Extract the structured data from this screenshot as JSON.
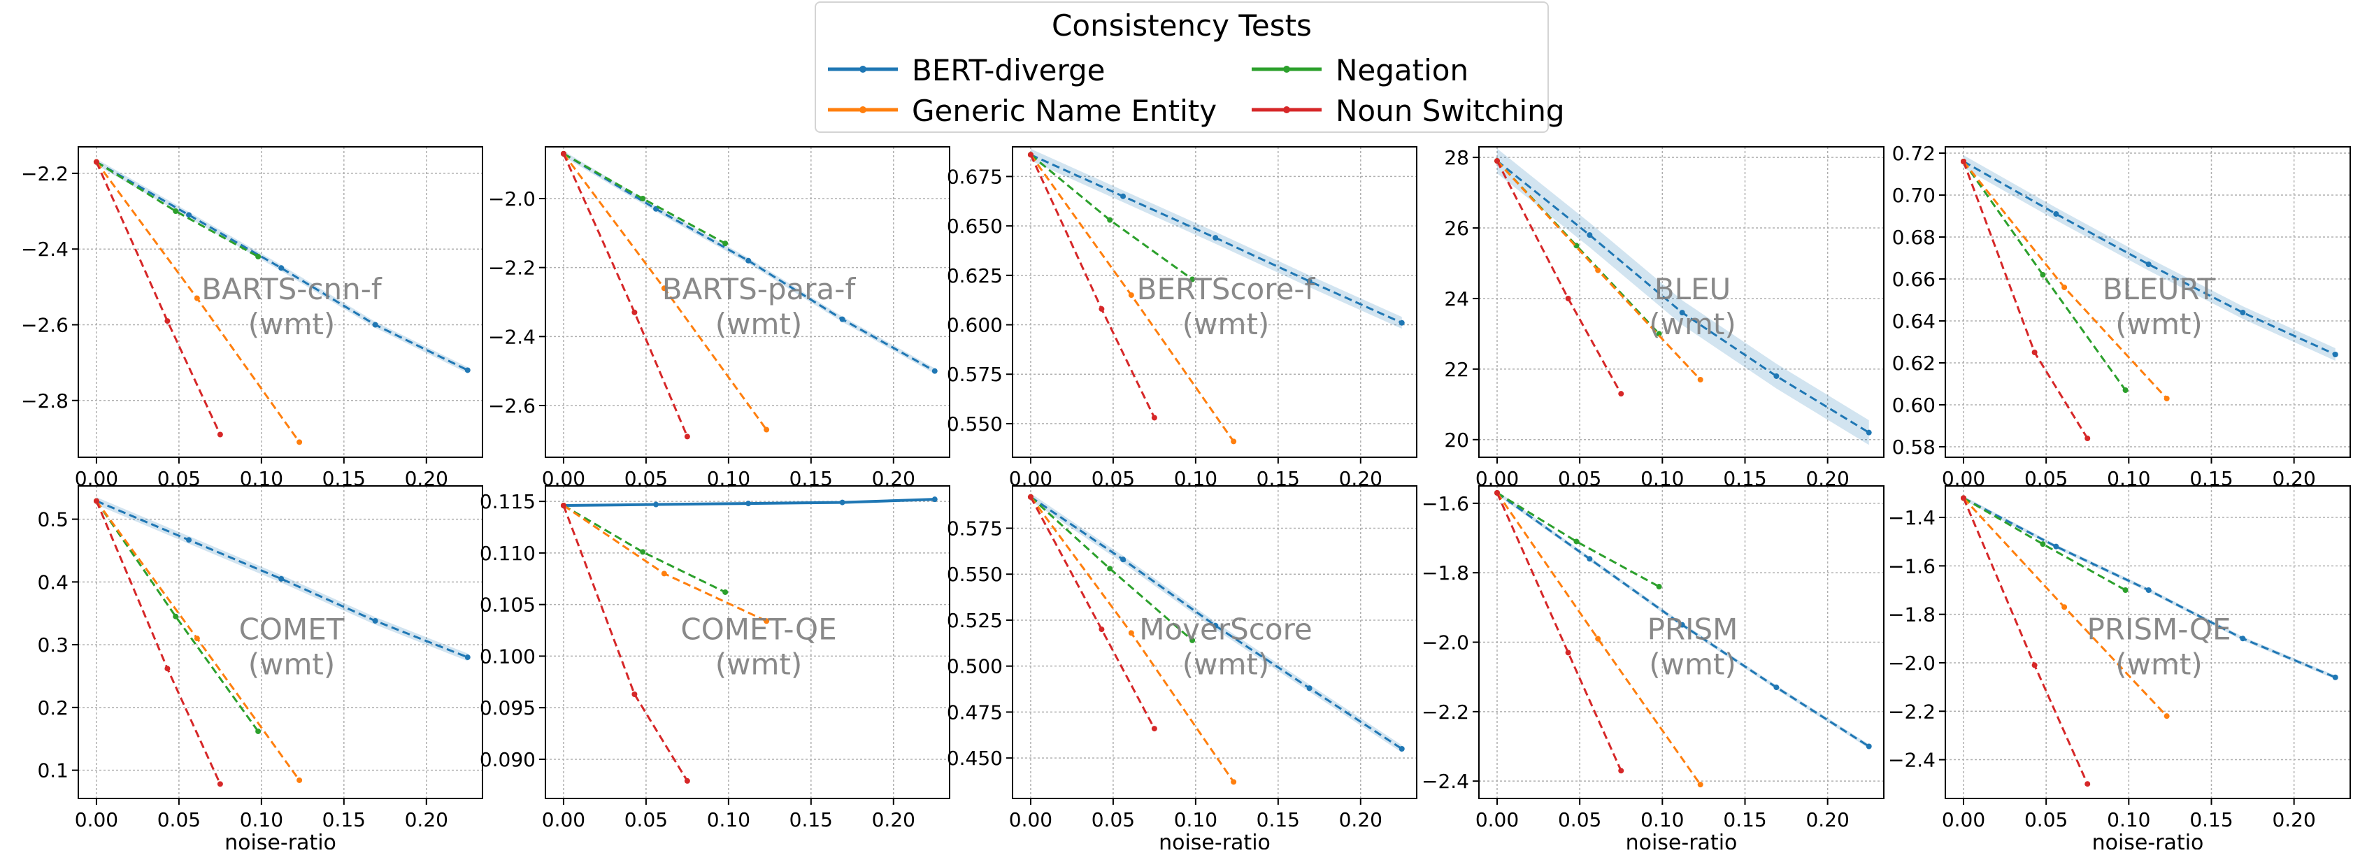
{
  "legend": {
    "title": "Consistency Tests",
    "entries": [
      {
        "name": "BERT-diverge",
        "color": "#1f77b4"
      },
      {
        "name": "Negation",
        "color": "#2ca02c"
      },
      {
        "name": "Generic Name Entity",
        "color": "#ff7f0e"
      },
      {
        "name": "Noun Switching",
        "color": "#d62728"
      }
    ]
  },
  "chart_data": [
    {
      "type": "line",
      "title": "BARTS-cnn-f",
      "subtitle": "(wmt)",
      "xlabel": "",
      "ylabel": "",
      "xlim": [
        -0.011,
        0.234
      ],
      "ylim": [
        -2.95,
        -2.13
      ],
      "xticks": [
        "0.00",
        "0.05",
        "0.10",
        "0.15",
        "0.20"
      ],
      "yticks": [
        -2.2,
        -2.4,
        -2.6,
        -2.8
      ],
      "ytick_labels": [
        "−2.2",
        "−2.4",
        "−2.6",
        "−2.8"
      ],
      "series": [
        {
          "name": "BERT-diverge",
          "x": [
            0,
            0.056,
            0.112,
            0.169,
            0.225
          ],
          "y": [
            -2.17,
            -2.31,
            -2.45,
            -2.6,
            -2.72
          ],
          "band": 0.008
        },
        {
          "name": "Negation",
          "x": [
            0,
            0.048,
            0.098
          ],
          "y": [
            -2.17,
            -2.3,
            -2.42
          ]
        },
        {
          "name": "Generic Name Entity",
          "x": [
            0,
            0.061,
            0.123
          ],
          "y": [
            -2.17,
            -2.53,
            -2.91
          ]
        },
        {
          "name": "Noun Switching",
          "x": [
            0,
            0.043,
            0.075
          ],
          "y": [
            -2.17,
            -2.59,
            -2.89
          ]
        }
      ]
    },
    {
      "type": "line",
      "title": "BARTS-para-f",
      "subtitle": "(wmt)",
      "xlabel": "",
      "ylabel": "",
      "xlim": [
        -0.011,
        0.234
      ],
      "ylim": [
        -2.75,
        -1.85
      ],
      "xticks": [
        "0.00",
        "0.05",
        "0.10",
        "0.15",
        "0.20"
      ],
      "yticks": [
        -2.0,
        -2.2,
        -2.4,
        -2.6
      ],
      "ytick_labels": [
        "−2.0",
        "−2.2",
        "−2.4",
        "−2.6"
      ],
      "series": [
        {
          "name": "BERT-diverge",
          "x": [
            0,
            0.056,
            0.112,
            0.169,
            0.225
          ],
          "y": [
            -1.87,
            -2.03,
            -2.18,
            -2.35,
            -2.5
          ],
          "band": 0.008
        },
        {
          "name": "Negation",
          "x": [
            0,
            0.048,
            0.098
          ],
          "y": [
            -1.87,
            -2.0,
            -2.13
          ]
        },
        {
          "name": "Generic Name Entity",
          "x": [
            0,
            0.061,
            0.123
          ],
          "y": [
            -1.87,
            -2.26,
            -2.67
          ]
        },
        {
          "name": "Noun Switching",
          "x": [
            0,
            0.043,
            0.075
          ],
          "y": [
            -1.87,
            -2.33,
            -2.69
          ]
        }
      ]
    },
    {
      "type": "line",
      "title": "BERTScore-f",
      "subtitle": "(wmt)",
      "xlabel": "",
      "ylabel": "",
      "xlim": [
        -0.011,
        0.234
      ],
      "ylim": [
        0.533,
        0.69
      ],
      "xticks": [
        "0.00",
        "0.05",
        "0.10",
        "0.15",
        "0.20"
      ],
      "yticks": [
        0.675,
        0.65,
        0.625,
        0.6,
        0.575,
        0.55
      ],
      "ytick_labels": [
        "0.675",
        "0.650",
        "0.625",
        "0.600",
        "0.575",
        "0.550"
      ],
      "series": [
        {
          "name": "BERT-diverge",
          "x": [
            0,
            0.056,
            0.112,
            0.169,
            0.225
          ],
          "y": [
            0.686,
            0.665,
            0.644,
            0.622,
            0.601
          ],
          "band": 0.003
        },
        {
          "name": "Negation",
          "x": [
            0,
            0.048,
            0.098
          ],
          "y": [
            0.686,
            0.653,
            0.623
          ]
        },
        {
          "name": "Generic Name Entity",
          "x": [
            0,
            0.061,
            0.123
          ],
          "y": [
            0.686,
            0.615,
            0.541
          ]
        },
        {
          "name": "Noun Switching",
          "x": [
            0,
            0.043,
            0.075
          ],
          "y": [
            0.686,
            0.608,
            0.553
          ]
        }
      ]
    },
    {
      "type": "line",
      "title": "BLEU",
      "subtitle": "(wmt)",
      "xlabel": "",
      "ylabel": "",
      "xlim": [
        -0.011,
        0.234
      ],
      "ylim": [
        19.5,
        28.3
      ],
      "xticks": [
        "0.00",
        "0.05",
        "0.10",
        "0.15",
        "0.20"
      ],
      "yticks": [
        28,
        26,
        24,
        22,
        20
      ],
      "ytick_labels": [
        "28",
        "26",
        "24",
        "22",
        "20"
      ],
      "series": [
        {
          "name": "BERT-diverge",
          "x": [
            0,
            0.056,
            0.112,
            0.169,
            0.225
          ],
          "y": [
            27.9,
            25.8,
            23.6,
            21.8,
            20.2
          ],
          "band": 0.35
        },
        {
          "name": "Negation",
          "x": [
            0,
            0.048,
            0.098
          ],
          "y": [
            27.9,
            25.5,
            23.0
          ]
        },
        {
          "name": "Generic Name Entity",
          "x": [
            0,
            0.061,
            0.123
          ],
          "y": [
            27.9,
            24.8,
            21.7
          ]
        },
        {
          "name": "Noun Switching",
          "x": [
            0,
            0.043,
            0.075
          ],
          "y": [
            27.9,
            24.0,
            21.3
          ]
        }
      ]
    },
    {
      "type": "line",
      "title": "BLEURT",
      "subtitle": "(wmt)",
      "xlabel": "",
      "ylabel": "",
      "xlim": [
        -0.011,
        0.234
      ],
      "ylim": [
        0.575,
        0.723
      ],
      "xticks": [
        "0.00",
        "0.05",
        "0.10",
        "0.15",
        "0.20"
      ],
      "yticks": [
        0.72,
        0.7,
        0.68,
        0.66,
        0.64,
        0.62,
        0.6,
        0.58
      ],
      "ytick_labels": [
        "0.72",
        "0.70",
        "0.68",
        "0.66",
        "0.64",
        "0.62",
        "0.60",
        "0.58"
      ],
      "series": [
        {
          "name": "BERT-diverge",
          "x": [
            0,
            0.056,
            0.112,
            0.169,
            0.225
          ],
          "y": [
            0.716,
            0.691,
            0.667,
            0.644,
            0.624
          ],
          "band": 0.003
        },
        {
          "name": "Negation",
          "x": [
            0,
            0.048,
            0.098
          ],
          "y": [
            0.716,
            0.662,
            0.607
          ]
        },
        {
          "name": "Generic Name Entity",
          "x": [
            0,
            0.061,
            0.123
          ],
          "y": [
            0.716,
            0.656,
            0.603
          ]
        },
        {
          "name": "Noun Switching",
          "x": [
            0,
            0.043,
            0.075
          ],
          "y": [
            0.716,
            0.625,
            0.584
          ]
        }
      ]
    },
    {
      "type": "line",
      "title": "COMET",
      "subtitle": "(wmt)",
      "xlabel": "noise-ratio",
      "ylabel": "",
      "xlim": [
        -0.011,
        0.234
      ],
      "ylim": [
        0.055,
        0.553
      ],
      "xticks": [
        "0.00",
        "0.05",
        "0.10",
        "0.15",
        "0.20"
      ],
      "yticks": [
        0.5,
        0.4,
        0.3,
        0.2,
        0.1
      ],
      "ytick_labels": [
        "0.5",
        "0.4",
        "0.3",
        "0.2",
        "0.1"
      ],
      "series": [
        {
          "name": "BERT-diverge",
          "x": [
            0,
            0.056,
            0.112,
            0.169,
            0.225
          ],
          "y": [
            0.529,
            0.467,
            0.405,
            0.338,
            0.28
          ],
          "band": 0.006
        },
        {
          "name": "Negation",
          "x": [
            0,
            0.048,
            0.098
          ],
          "y": [
            0.529,
            0.345,
            0.162
          ]
        },
        {
          "name": "Generic Name Entity",
          "x": [
            0,
            0.061,
            0.123
          ],
          "y": [
            0.529,
            0.31,
            0.084
          ]
        },
        {
          "name": "Noun Switching",
          "x": [
            0,
            0.043,
            0.075
          ],
          "y": [
            0.529,
            0.262,
            0.078
          ]
        }
      ]
    },
    {
      "type": "line",
      "title": "COMET-QE",
      "subtitle": "(wmt)",
      "xlabel": "",
      "ylabel": "",
      "xlim": [
        -0.011,
        0.234
      ],
      "ylim": [
        0.0862,
        0.1165
      ],
      "xticks": [
        "0.00",
        "0.05",
        "0.10",
        "0.15",
        "0.20"
      ],
      "yticks": [
        0.115,
        0.11,
        0.105,
        0.1,
        0.095,
        0.09
      ],
      "ytick_labels": [
        "0.115",
        "0.110",
        "0.105",
        "0.100",
        "0.095",
        "0.090"
      ],
      "series": [
        {
          "name": "BERT-diverge",
          "x": [
            0,
            0.056,
            0.112,
            0.169,
            0.225
          ],
          "y": [
            0.1146,
            0.1147,
            0.1148,
            0.1149,
            0.1152
          ],
          "band": 0.0001,
          "solid": true
        },
        {
          "name": "Negation",
          "x": [
            0,
            0.048,
            0.098
          ],
          "y": [
            0.1146,
            0.1101,
            0.1062
          ]
        },
        {
          "name": "Generic Name Entity",
          "x": [
            0,
            0.061,
            0.123
          ],
          "y": [
            0.1146,
            0.108,
            0.1034
          ]
        },
        {
          "name": "Noun Switching",
          "x": [
            0,
            0.043,
            0.075
          ],
          "y": [
            0.1146,
            0.0963,
            0.0879
          ]
        }
      ]
    },
    {
      "type": "line",
      "title": "MoverScore",
      "subtitle": "(wmt)",
      "xlabel": "noise-ratio",
      "ylabel": "",
      "xlim": [
        -0.011,
        0.234
      ],
      "ylim": [
        0.428,
        0.598
      ],
      "xticks": [
        "0.00",
        "0.05",
        "0.10",
        "0.15",
        "0.20"
      ],
      "yticks": [
        0.575,
        0.55,
        0.525,
        0.5,
        0.475,
        0.45
      ],
      "ytick_labels": [
        "0.575",
        "0.550",
        "0.525",
        "0.500",
        "0.475",
        "0.450"
      ],
      "series": [
        {
          "name": "BERT-diverge",
          "x": [
            0,
            0.056,
            0.112,
            0.169,
            0.225
          ],
          "y": [
            0.592,
            0.558,
            0.522,
            0.488,
            0.455
          ],
          "band": 0.002
        },
        {
          "name": "Negation",
          "x": [
            0,
            0.048,
            0.098
          ],
          "y": [
            0.592,
            0.553,
            0.514
          ]
        },
        {
          "name": "Generic Name Entity",
          "x": [
            0,
            0.061,
            0.123
          ],
          "y": [
            0.592,
            0.518,
            0.437
          ]
        },
        {
          "name": "Noun Switching",
          "x": [
            0,
            0.043,
            0.075
          ],
          "y": [
            0.592,
            0.52,
            0.466
          ]
        }
      ]
    },
    {
      "type": "line",
      "title": "PRISM",
      "subtitle": "(wmt)",
      "xlabel": "noise-ratio",
      "ylabel": "",
      "xlim": [
        -0.011,
        0.234
      ],
      "ylim": [
        -2.45,
        -1.55
      ],
      "xticks": [
        "0.00",
        "0.05",
        "0.10",
        "0.15",
        "0.20"
      ],
      "yticks": [
        -1.6,
        -1.8,
        -2.0,
        -2.2,
        -2.4
      ],
      "ytick_labels": [
        "−1.6",
        "−1.8",
        "−2.0",
        "−2.2",
        "−2.4"
      ],
      "series": [
        {
          "name": "BERT-diverge",
          "x": [
            0,
            0.056,
            0.112,
            0.169,
            0.225
          ],
          "y": [
            -1.57,
            -1.76,
            -1.95,
            -2.13,
            -2.3
          ],
          "band": 0.006
        },
        {
          "name": "Negation",
          "x": [
            0,
            0.048,
            0.098
          ],
          "y": [
            -1.57,
            -1.71,
            -1.84
          ]
        },
        {
          "name": "Generic Name Entity",
          "x": [
            0,
            0.061,
            0.123
          ],
          "y": [
            -1.57,
            -1.99,
            -2.41
          ]
        },
        {
          "name": "Noun Switching",
          "x": [
            0,
            0.043,
            0.075
          ],
          "y": [
            -1.57,
            -2.03,
            -2.37
          ]
        }
      ]
    },
    {
      "type": "line",
      "title": "PRISM-QE",
      "subtitle": "(wmt)",
      "xlabel": "noise-ratio",
      "ylabel": "",
      "xlim": [
        -0.011,
        0.234
      ],
      "ylim": [
        -2.56,
        -1.27
      ],
      "xticks": [
        "0.00",
        "0.05",
        "0.10",
        "0.15",
        "0.20"
      ],
      "yticks": [
        -1.4,
        -1.6,
        -1.8,
        -2.0,
        -2.2,
        -2.4
      ],
      "ytick_labels": [
        "−1.4",
        "−1.6",
        "−1.8",
        "−2.0",
        "−2.2",
        "−2.4"
      ],
      "series": [
        {
          "name": "BERT-diverge",
          "x": [
            0,
            0.056,
            0.112,
            0.169,
            0.225
          ],
          "y": [
            -1.32,
            -1.52,
            -1.7,
            -1.9,
            -2.06
          ],
          "band": 0.008
        },
        {
          "name": "Negation",
          "x": [
            0,
            0.048,
            0.098
          ],
          "y": [
            -1.32,
            -1.51,
            -1.7
          ]
        },
        {
          "name": "Generic Name Entity",
          "x": [
            0,
            0.061,
            0.123
          ],
          "y": [
            -1.32,
            -1.77,
            -2.22
          ]
        },
        {
          "name": "Noun Switching",
          "x": [
            0,
            0.043,
            0.075
          ],
          "y": [
            -1.32,
            -2.01,
            -2.5
          ]
        }
      ]
    }
  ]
}
